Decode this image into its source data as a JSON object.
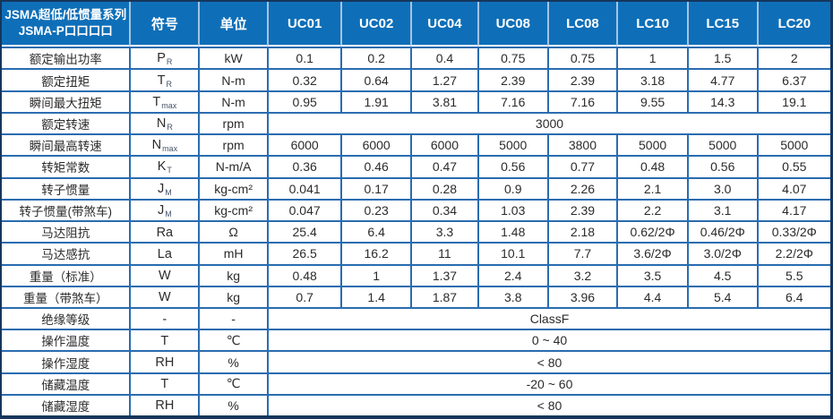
{
  "table": {
    "colors": {
      "header_background": "#0E6FB8",
      "grid_line": "#2A6CB0",
      "outer_border": "#16365C",
      "header_separator": "#A6C3E3"
    },
    "header": {
      "title_line1": "JSMA超低/低惯量系列",
      "title_line2": "JSMA-P口口口口",
      "symbol_col": "符号",
      "unit_col": "单位",
      "models": [
        "UC01",
        "UC02",
        "UC04",
        "UC08",
        "LC08",
        "LC10",
        "LC15",
        "LC20"
      ]
    },
    "rows": [
      {
        "label": "额定输出功率",
        "symbol": "P",
        "symbol_sub": "R",
        "unit": "kW",
        "values": [
          "0.1",
          "0.2",
          "0.4",
          "0.75",
          "0.75",
          "1",
          "1.5",
          "2"
        ]
      },
      {
        "label": "额定扭矩",
        "symbol": "T",
        "symbol_sub": "R",
        "unit": "N-m",
        "values": [
          "0.32",
          "0.64",
          "1.27",
          "2.39",
          "2.39",
          "3.18",
          "4.77",
          "6.37"
        ]
      },
      {
        "label": "瞬间最大扭矩",
        "symbol": "T",
        "symbol_sub": "max",
        "unit": "N-m",
        "values": [
          "0.95",
          "1.91",
          "3.81",
          "7.16",
          "7.16",
          "9.55",
          "14.3",
          "19.1"
        ]
      },
      {
        "label": "额定转速",
        "symbol": "N",
        "symbol_sub": "R",
        "unit": "rpm",
        "span_value": "3000"
      },
      {
        "label": "瞬间最高转速",
        "symbol": "N",
        "symbol_sub": "max",
        "unit": "rpm",
        "values": [
          "6000",
          "6000",
          "6000",
          "5000",
          "3800",
          "5000",
          "5000",
          "5000"
        ]
      },
      {
        "label": "转矩常数",
        "symbol": "K",
        "symbol_sub": "T",
        "unit": "N-m/A",
        "values": [
          "0.36",
          "0.46",
          "0.47",
          "0.56",
          "0.77",
          "0.48",
          "0.56",
          "0.55"
        ]
      },
      {
        "label": "转子惯量",
        "symbol": "J",
        "symbol_sub": "M",
        "unit": "kg-cm²",
        "values": [
          "0.041",
          "0.17",
          "0.28",
          "0.9",
          "2.26",
          "2.1",
          "3.0",
          "4.07"
        ]
      },
      {
        "label": "转子惯量(带煞车)",
        "symbol": "J",
        "symbol_sub": "M",
        "unit": "kg-cm²",
        "values": [
          "0.047",
          "0.23",
          "0.34",
          "1.03",
          "2.39",
          "2.2",
          "3.1",
          "4.17"
        ]
      },
      {
        "label": "马达阻抗",
        "symbol": "Ra",
        "unit": "Ω",
        "values": [
          "25.4",
          "6.4",
          "3.3",
          "1.48",
          "2.18",
          "0.62/2Φ",
          "0.46/2Φ",
          "0.33/2Φ"
        ]
      },
      {
        "label": "马达感抗",
        "symbol": "La",
        "unit": "mH",
        "values": [
          "26.5",
          "16.2",
          "11",
          "10.1",
          "7.7",
          "3.6/2Φ",
          "3.0/2Φ",
          "2.2/2Φ"
        ]
      },
      {
        "label": "重量（标准）",
        "symbol": "W",
        "unit": "kg",
        "values": [
          "0.48",
          "1",
          "1.37",
          "2.4",
          "3.2",
          "3.5",
          "4.5",
          "5.5"
        ]
      },
      {
        "label": "重量（带煞车）",
        "symbol": "W",
        "unit": "kg",
        "values": [
          "0.7",
          "1.4",
          "1.87",
          "3.8",
          "3.96",
          "4.4",
          "5.4",
          "6.4"
        ]
      },
      {
        "label": "绝缘等级",
        "symbol": "-",
        "unit": "-",
        "span_value": "ClassF"
      },
      {
        "label": "操作温度",
        "symbol": "T",
        "unit": "℃",
        "span_value": "0 ~ 40"
      },
      {
        "label": "操作湿度",
        "symbol": "RH",
        "unit": "%",
        "span_value": "< 80"
      },
      {
        "label": "储藏温度",
        "symbol": "T",
        "unit": "℃",
        "span_value": "-20 ~ 60"
      },
      {
        "label": "储藏湿度",
        "symbol": "RH",
        "unit": "%",
        "span_value": "< 80"
      }
    ]
  }
}
